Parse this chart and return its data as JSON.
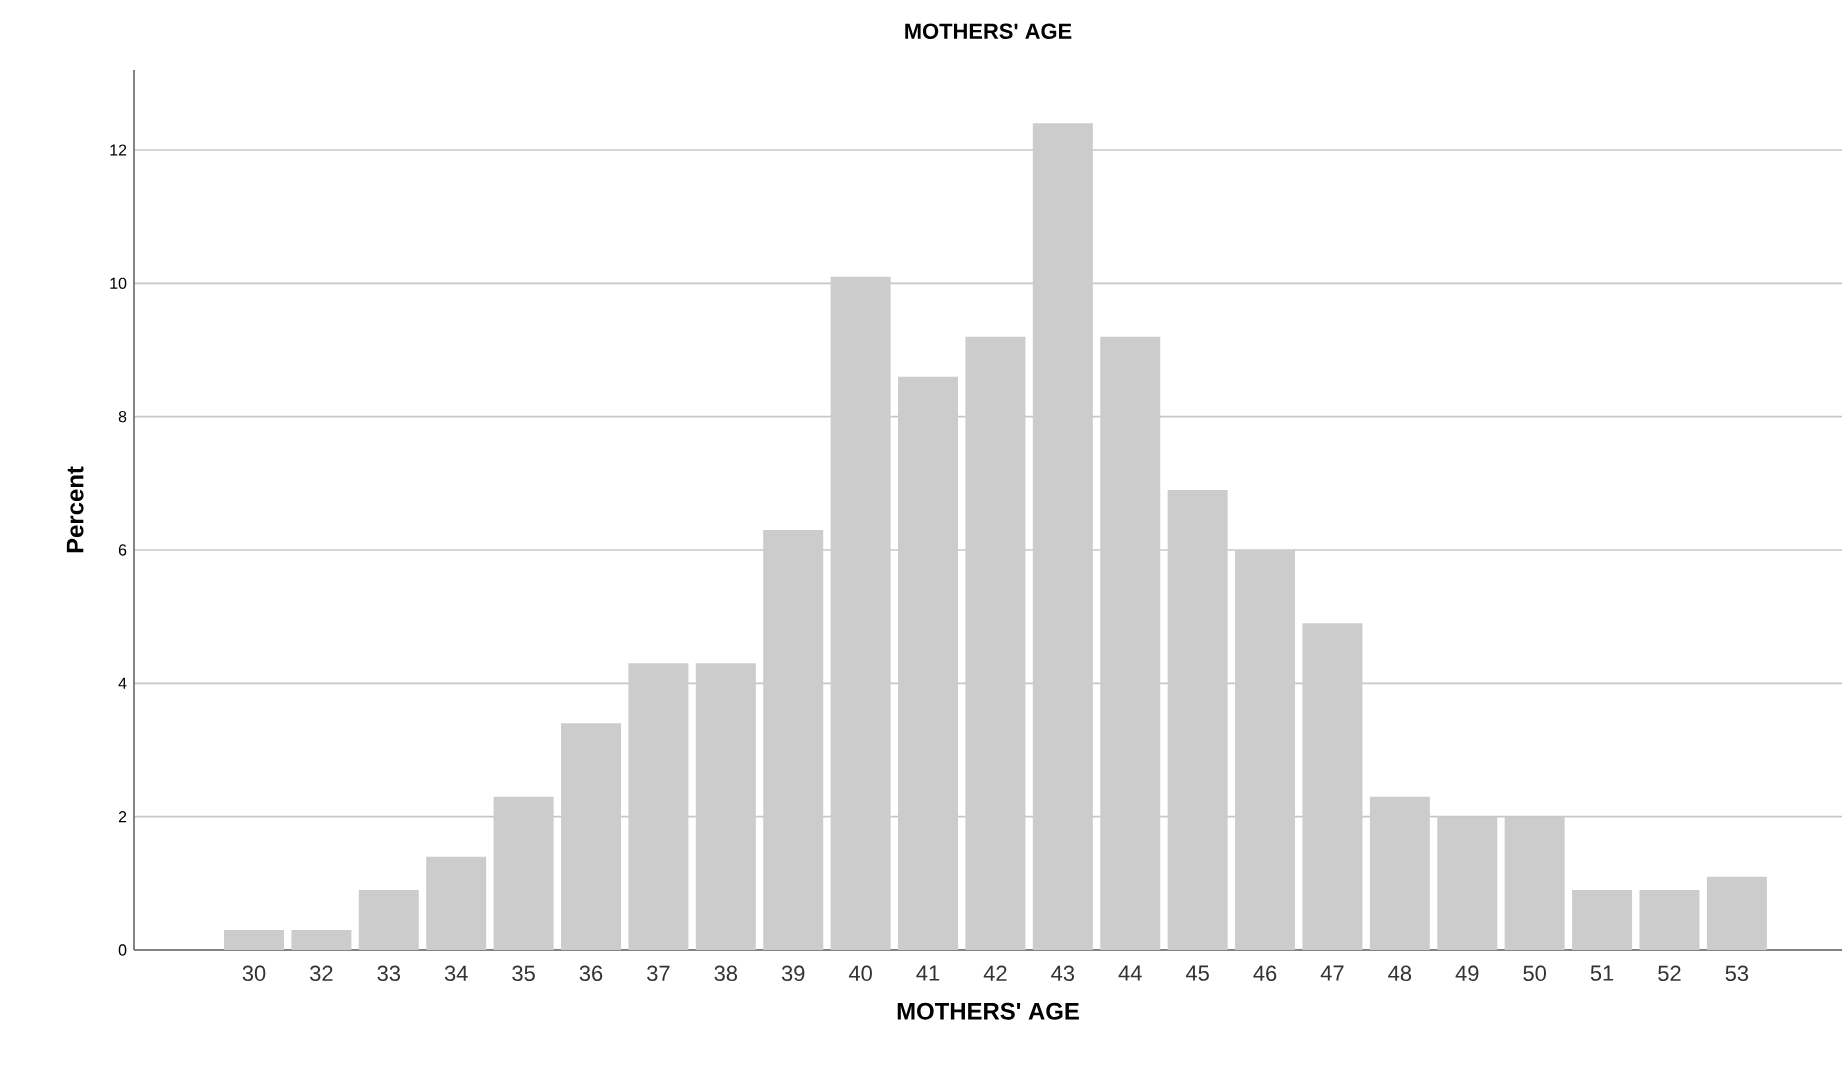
{
  "chart_data": {
    "type": "bar",
    "title": "MOTHERS' AGE",
    "xlabel": "MOTHERS' AGE",
    "ylabel": "Percent",
    "categories": [
      "30",
      "32",
      "33",
      "34",
      "35",
      "36",
      "37",
      "38",
      "39",
      "40",
      "41",
      "42",
      "43",
      "44",
      "45",
      "46",
      "47",
      "48",
      "49",
      "50",
      "51",
      "52",
      "53"
    ],
    "values": [
      0.3,
      0.3,
      0.9,
      1.4,
      2.3,
      3.4,
      4.3,
      4.3,
      6.3,
      10.1,
      8.6,
      9.2,
      12.4,
      9.2,
      6.9,
      6.0,
      4.9,
      2.3,
      2.0,
      2.0,
      0.9,
      0.9,
      1.1
    ],
    "color": "#cccccc",
    "ylim": [
      0,
      13.2
    ],
    "yticks": [
      0,
      2,
      4,
      6,
      8,
      10,
      12
    ],
    "grid": "y"
  }
}
